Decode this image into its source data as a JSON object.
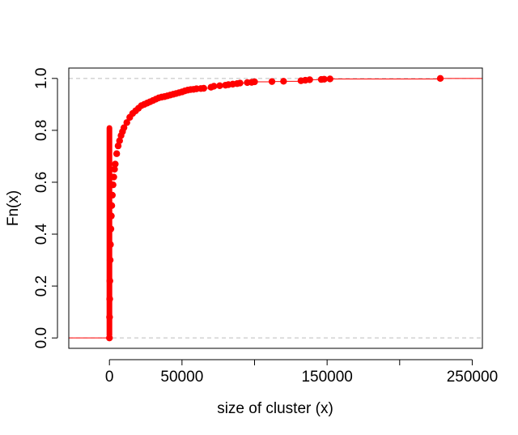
{
  "chart_data": {
    "type": "scatter",
    "title": "",
    "xlabel": "size of cluster (x)",
    "ylabel": "Fn(x)",
    "xlim": [
      -28000,
      257000
    ],
    "ylim": [
      -0.04,
      1.04
    ],
    "x_ticks": [
      0,
      50000,
      100000,
      150000,
      200000,
      250000
    ],
    "x_tick_labels": [
      "0",
      "50000",
      "",
      "150000",
      "",
      "250000"
    ],
    "y_ticks": [
      0.0,
      0.2,
      0.4,
      0.6,
      0.8,
      1.0
    ],
    "y_tick_labels": [
      "0.0",
      "0.2",
      "0.4",
      "0.6",
      "0.8",
      "1.0"
    ],
    "reference_lines": [
      0,
      1
    ],
    "series": [
      {
        "color": "#ff0000",
        "x": [
          0,
          100,
          200,
          300,
          500,
          700,
          1000,
          1300,
          1600,
          2000,
          2500,
          3000,
          3500,
          4000,
          5000,
          6000,
          7000,
          8000,
          9000,
          10000,
          12000,
          14000,
          16000,
          18000,
          20000,
          22000,
          24000,
          26000,
          28000,
          30000,
          32000,
          34000,
          36000,
          38000,
          40000,
          42000,
          44000,
          46000,
          48000,
          50000,
          52000,
          54000,
          56000,
          58000,
          60000,
          63000,
          65000,
          70000,
          72000,
          76000,
          80000,
          82000,
          85000,
          88000,
          90000,
          95000,
          98000,
          100000,
          112000,
          120000,
          132000,
          135000,
          138000,
          146000,
          148000,
          152000,
          228000
        ],
        "y": [
          0.0,
          0.08,
          0.15,
          0.22,
          0.3,
          0.36,
          0.42,
          0.47,
          0.51,
          0.55,
          0.59,
          0.62,
          0.65,
          0.67,
          0.71,
          0.74,
          0.76,
          0.78,
          0.795,
          0.81,
          0.83,
          0.85,
          0.865,
          0.875,
          0.885,
          0.895,
          0.9,
          0.905,
          0.91,
          0.915,
          0.92,
          0.925,
          0.928,
          0.93,
          0.933,
          0.936,
          0.939,
          0.942,
          0.945,
          0.948,
          0.952,
          0.955,
          0.957,
          0.958,
          0.96,
          0.961,
          0.962,
          0.966,
          0.97,
          0.972,
          0.974,
          0.976,
          0.978,
          0.98,
          0.982,
          0.984,
          0.985,
          0.987,
          0.988,
          0.989,
          0.991,
          0.993,
          0.995,
          0.996,
          0.997,
          0.998,
          1.0
        ]
      }
    ]
  }
}
